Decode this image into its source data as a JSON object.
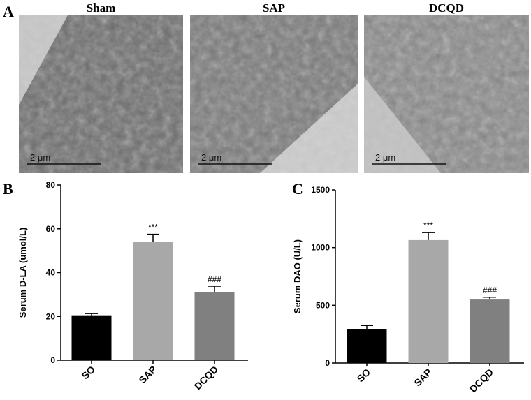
{
  "panel_a": {
    "label": "A",
    "images": [
      {
        "title": "Sham",
        "scale_bar": "2 μm"
      },
      {
        "title": "SAP",
        "scale_bar": "2 μm"
      },
      {
        "title": "DCQD",
        "scale_bar": "2 μm"
      }
    ]
  },
  "chart_data": [
    {
      "type": "bar",
      "panel_label": "B",
      "y_label": "Serum D-LA (umol/L)",
      "categories": [
        "SO",
        "SAP",
        "DCQD"
      ],
      "values": [
        20.5,
        54,
        31
      ],
      "errors": [
        0.8,
        3.5,
        2.8
      ],
      "annotations": [
        null,
        "***",
        "###"
      ],
      "colors": [
        "#000000",
        "#a8a8a8",
        "#808080"
      ],
      "ylim": [
        0,
        80
      ],
      "yticks": [
        0,
        20,
        40,
        60,
        80
      ]
    },
    {
      "type": "bar",
      "panel_label": "C",
      "y_label": "Serum DAO (U/L)",
      "categories": [
        "SO",
        "SAP",
        "DCQD"
      ],
      "values": [
        295,
        1065,
        550
      ],
      "errors": [
        30,
        65,
        20
      ],
      "annotations": [
        null,
        "***",
        "###"
      ],
      "colors": [
        "#000000",
        "#a8a8a8",
        "#808080"
      ],
      "ylim": [
        0,
        1500
      ],
      "yticks": [
        0,
        500,
        1000,
        1500
      ]
    }
  ]
}
